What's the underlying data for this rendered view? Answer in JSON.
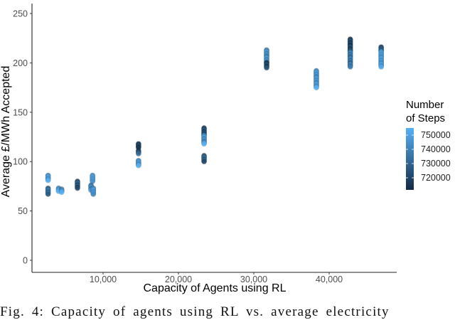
{
  "chart_data": {
    "type": "scatter",
    "title": "",
    "xlabel": "Capacity of Agents using RL",
    "ylabel": "Average £/MWh Accepted",
    "xlim": [
      0,
      49000
    ],
    "ylim": [
      -5,
      260
    ],
    "x_ticks": [
      10000,
      20000,
      30000,
      40000
    ],
    "x_tick_labels": [
      "10,000",
      "20,000",
      "30,000",
      "40,000"
    ],
    "y_ticks": [
      0,
      50,
      100,
      150,
      200,
      250
    ],
    "y_tick_labels": [
      "0",
      "50",
      "100",
      "150",
      "200",
      "250"
    ],
    "grid": false,
    "legend": {
      "title_line1": "Number",
      "title_line2": "of Steps",
      "type": "colorbar",
      "labels": [
        "750000",
        "740000",
        "730000",
        "720000"
      ],
      "color_low": "#132B43",
      "color_high": "#56B1F7",
      "position": "right"
    },
    "color_variable": "Number of Steps",
    "clusters": [
      {
        "x": 2700,
        "y_min": 81,
        "y_max": 86,
        "steps": 750000
      },
      {
        "x": 2700,
        "y_min": 67,
        "y_max": 73,
        "steps": 735000
      },
      {
        "x": 4100,
        "y_min": 70,
        "y_max": 73,
        "steps": 748000
      },
      {
        "x": 4500,
        "y_min": 69,
        "y_max": 72,
        "steps": 745000
      },
      {
        "x": 6600,
        "y_min": 73,
        "y_max": 80,
        "steps": 728000
      },
      {
        "x": 8600,
        "y_min": 80,
        "y_max": 86,
        "steps": 750000
      },
      {
        "x": 8400,
        "y_min": 71,
        "y_max": 76,
        "steps": 742000
      },
      {
        "x": 8700,
        "y_min": 67,
        "y_max": 73,
        "steps": 748000
      },
      {
        "x": 14700,
        "y_min": 114,
        "y_max": 118,
        "steps": 720000
      },
      {
        "x": 14700,
        "y_min": 108,
        "y_max": 111,
        "steps": 725000
      },
      {
        "x": 14700,
        "y_min": 96,
        "y_max": 101,
        "steps": 748000
      },
      {
        "x": 23400,
        "y_min": 127,
        "y_max": 134,
        "steps": 724000
      },
      {
        "x": 23400,
        "y_min": 118,
        "y_max": 127,
        "steps": 745000
      },
      {
        "x": 23400,
        "y_min": 100,
        "y_max": 106,
        "steps": 730000
      },
      {
        "x": 31700,
        "y_min": 200,
        "y_max": 213,
        "steps": 745000
      },
      {
        "x": 31700,
        "y_min": 195,
        "y_max": 200,
        "steps": 722000
      },
      {
        "x": 38300,
        "y_min": 175,
        "y_max": 192,
        "steps": 748000
      },
      {
        "x": 42800,
        "y_min": 212,
        "y_max": 224,
        "steps": 722000
      },
      {
        "x": 42800,
        "y_min": 196,
        "y_max": 212,
        "steps": 738000
      },
      {
        "x": 46900,
        "y_min": 212,
        "y_max": 216,
        "steps": 726000
      },
      {
        "x": 46900,
        "y_min": 196,
        "y_max": 212,
        "steps": 750000
      }
    ]
  },
  "caption": "Fig. 4: Capacity of agents using RL vs. average electricity"
}
